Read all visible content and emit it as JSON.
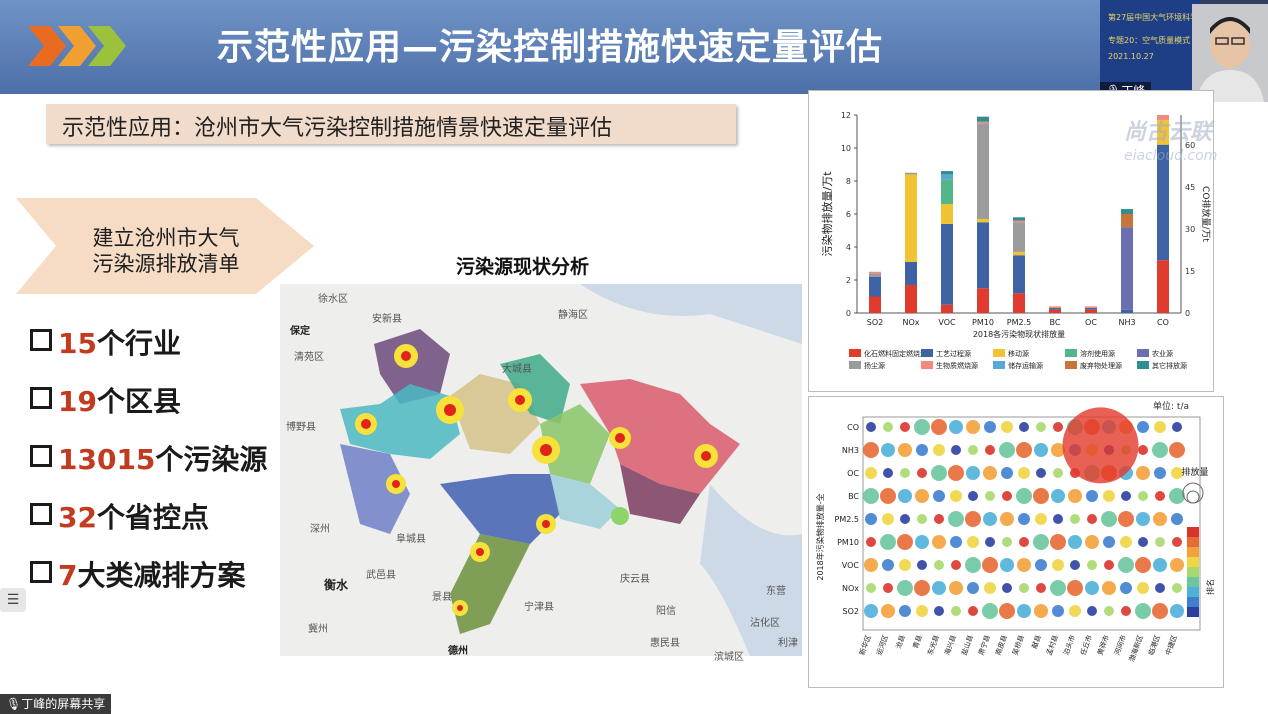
{
  "slide": {
    "title": "示范性应用—污染控制措施快速定量评估",
    "subtitle": "示范性应用：沧州市大气污染控制措施情景快速定量评估",
    "pentagon": {
      "line1": "建立沧州市大气",
      "line2": "污染源排放清单"
    },
    "stats": [
      {
        "num": "15",
        "text": "个行业"
      },
      {
        "num": "19",
        "text": "个区县"
      },
      {
        "num": "13015",
        "text": "个污染源"
      },
      {
        "num": "32",
        "text": "个省控点"
      },
      {
        "num": "7",
        "text": "大类减排方案"
      }
    ],
    "map_title": "污染源现状分析",
    "map_labels": [
      "徐水区",
      "安新县",
      "保定",
      "清苑区",
      "博野县",
      "静海区",
      "大城县",
      "深州",
      "衡水",
      "武邑县",
      "阜城县",
      "景县",
      "宁津县",
      "庆云县",
      "冀州",
      "德州",
      "惠民县",
      "沾化区",
      "滨城区",
      "利津",
      "东营",
      "阳信"
    ]
  },
  "video": {
    "speaker_name": "丁峰",
    "slide_lines": [
      "第27届中国大气环境科学",
      "专题20：空气质量模式",
      "2021.10.27"
    ]
  },
  "watermark": {
    "brand": "尚古云联",
    "url": "eiacloud.com"
  },
  "chart1": {
    "chart_data": {
      "type": "bar",
      "categories": [
        "SO2",
        "NOx",
        "VOC",
        "PM10",
        "PM2.5",
        "BC",
        "OC",
        "NH3",
        "CO"
      ],
      "xlabel": "2018各污染物现状排放量",
      "ylabel": "污染物排放量/万t",
      "y2label": "CO排放量/万t",
      "ylim": [
        0,
        12
      ],
      "yticks": [
        0,
        2,
        4,
        6,
        8,
        10,
        12
      ],
      "y2ticks": [
        0,
        15,
        30,
        45,
        60
      ],
      "legend": [
        "化石燃料固定燃烧源",
        "工艺过程源",
        "移动源",
        "溶剂使用源",
        "农业源",
        "扬尘源",
        "生物质燃烧源",
        "储存运输源",
        "废弃物处理源",
        "其它排放源"
      ],
      "colors": [
        "#e03b2d",
        "#3e62a3",
        "#f1c232",
        "#52b788",
        "#6a6fb0",
        "#9b9b9b",
        "#f08a7e",
        "#5aa6d6",
        "#c8743a",
        "#2f8f8f"
      ],
      "stacks": [
        [
          1.0,
          1.2,
          0.0,
          0.0,
          0.0,
          0.2,
          0.1,
          0.0,
          0.0,
          0.0
        ],
        [
          1.7,
          1.4,
          5.3,
          0.0,
          0.0,
          0.1,
          0.0,
          0.0,
          0.0,
          0.0
        ],
        [
          0.5,
          4.9,
          1.2,
          1.5,
          0.0,
          0.0,
          0.0,
          0.3,
          0.0,
          0.2
        ],
        [
          1.5,
          4.0,
          0.2,
          0.0,
          0.0,
          5.8,
          0.1,
          0.0,
          0.0,
          0.3
        ],
        [
          1.2,
          2.3,
          0.2,
          0.0,
          0.0,
          1.8,
          0.1,
          0.0,
          0.0,
          0.2
        ],
        [
          0.2,
          0.1,
          0.0,
          0.0,
          0.0,
          0.0,
          0.1,
          0.0,
          0.0,
          0.0
        ],
        [
          0.2,
          0.1,
          0.0,
          0.0,
          0.0,
          0.0,
          0.1,
          0.0,
          0.0,
          0.0
        ],
        [
          0.0,
          0.2,
          0.0,
          0.0,
          5.0,
          0.0,
          0.0,
          0.0,
          0.8,
          0.3
        ],
        [
          3.2,
          7.0,
          1.5,
          0.0,
          0.0,
          0.0,
          0.3,
          0.0,
          0.0,
          0.0
        ]
      ]
    }
  },
  "chart2": {
    "chart_data": {
      "type": "scatter",
      "unit": "单位: t/a",
      "ylabel": "2018年污染物排放量-全",
      "rows": [
        "CO",
        "NH3",
        "OC",
        "BC",
        "PM2.5",
        "PM10",
        "VOC",
        "NOx",
        "SO2"
      ],
      "cols": [
        "新华区",
        "运河区",
        "沧县",
        "青县",
        "东光县",
        "海兴县",
        "盐山县",
        "肃宁县",
        "南皮县",
        "吴桥县",
        "献县",
        "孟村县",
        "泊头市",
        "任丘市",
        "黄骅市",
        "河间市",
        "渤海新区",
        "临港区",
        "中捷区"
      ],
      "legend_title": "排放量",
      "colorbar_title": "排名"
    }
  }
}
